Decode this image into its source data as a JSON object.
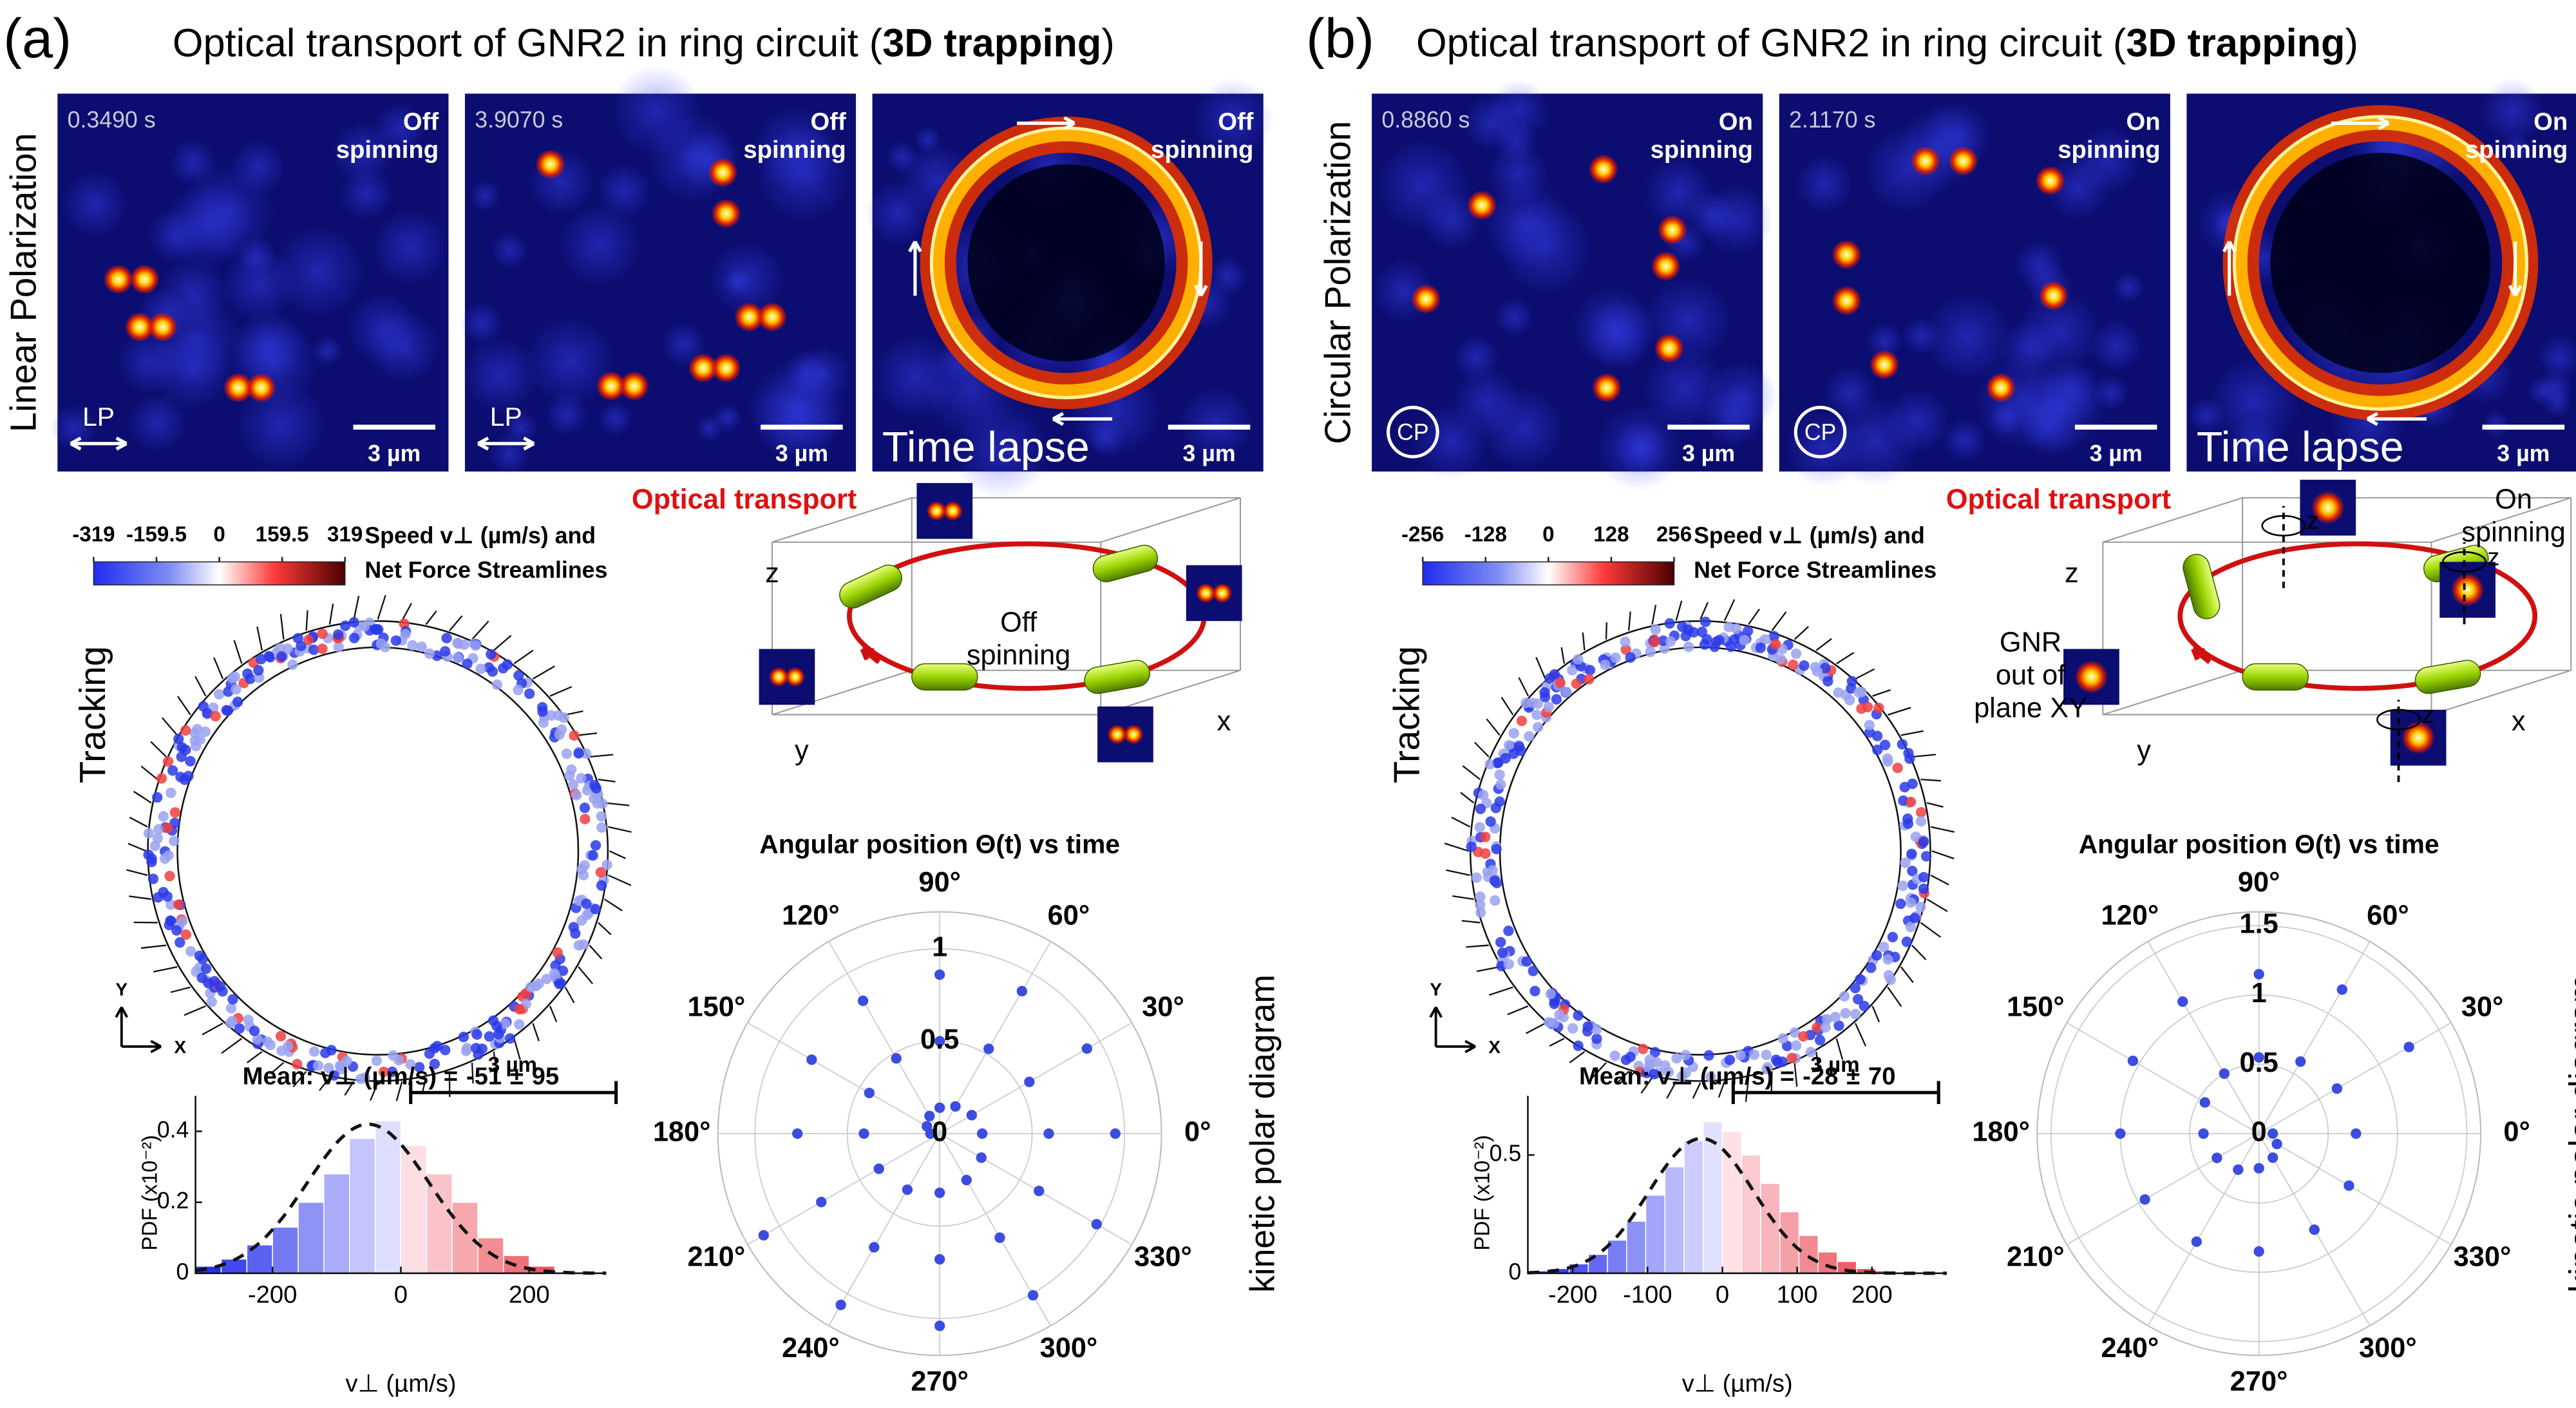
{
  "panels": [
    {
      "label": "(a)",
      "title": "Optical transport of GNR2 in ring circuit (",
      "title_bold": "3D trapping",
      "title_end": ")",
      "row_label": "Linear Polarization",
      "frames": [
        {
          "time": "0.3490 s",
          "state": [
            "Off",
            "spinning"
          ],
          "scale": "3 µm",
          "pol": "LP"
        },
        {
          "time": "3.9070 s",
          "state": [
            "Off",
            "spinning"
          ],
          "scale": "3 µm",
          "pol": "LP"
        },
        {
          "state": [
            "Off",
            "spinning"
          ],
          "scale": "3 µm",
          "caption": "Time lapse"
        }
      ],
      "transport": "Optical transport",
      "colorbar": {
        "lim": [
          -319,
          319
        ],
        "ticks": [
          -319,
          -159.5,
          0,
          159.5,
          319
        ],
        "label": [
          "Speed v⊥ (µm/s) and",
          "Net Force Streamlines"
        ]
      },
      "tracking": {
        "label": "Tracking",
        "y": "Y",
        "x": "X",
        "scale": "3 µm"
      },
      "diagram": {
        "axes": [
          "z",
          "y",
          "x"
        ],
        "notes": [
          [
            "Off",
            "spinning"
          ]
        ]
      },
      "histogram": {
        "mean_label": "Mean: v⊥ (µm/s) =",
        "mean": -51,
        "pm": "±",
        "sd": 95,
        "ylabel": "PDF (x10⁻²)",
        "xlabel": "v⊥ (µm/s)",
        "bins": [
          -320,
          -280,
          -240,
          -200,
          -160,
          -120,
          -80,
          -40,
          0,
          40,
          80,
          120,
          160,
          200,
          240
        ],
        "values": [
          0.02,
          0.04,
          0.08,
          0.13,
          0.2,
          0.28,
          0.38,
          0.43,
          0.36,
          0.28,
          0.2,
          0.1,
          0.05,
          0.02
        ],
        "xlim": [
          -320,
          320
        ],
        "xticks": [
          -200,
          0,
          200
        ],
        "ylim": [
          0,
          0.5
        ],
        "yticks": [
          0,
          0.2,
          0.4
        ]
      },
      "polar": {
        "title": "Angular position Θ(t) vs time",
        "side_label": "kinetic polar diagram",
        "angles": [
          {
            "value": 0,
            "label": "0°"
          },
          {
            "value": 30,
            "label": "30°"
          },
          {
            "value": 60,
            "label": "60°"
          },
          {
            "value": 90,
            "label": "90°"
          },
          {
            "value": 120,
            "label": "120°"
          },
          {
            "value": 150,
            "label": "150°"
          },
          {
            "value": 180,
            "label": "180°"
          },
          {
            "value": 210,
            "label": "210°"
          },
          {
            "value": 240,
            "label": "240°"
          },
          {
            "value": 270,
            "label": "270°"
          },
          {
            "value": 300,
            "label": "300°"
          },
          {
            "value": 330,
            "label": "330°"
          }
        ],
        "rlim": [
          0,
          1.2
        ],
        "rticks": [
          0,
          0.5,
          1
        ],
        "color": "#3b4ce0",
        "theta": [
          180,
          150,
          120,
          90,
          60,
          30,
          0,
          330,
          300,
          270,
          240,
          210,
          180,
          150,
          120,
          90,
          60,
          30,
          0,
          330,
          300,
          270,
          240,
          210,
          180,
          150,
          120,
          90,
          60,
          30,
          0,
          330,
          300,
          270,
          240,
          210
        ],
        "r": [
          0.05,
          0.08,
          0.11,
          0.14,
          0.17,
          0.2,
          0.23,
          0.26,
          0.29,
          0.32,
          0.35,
          0.38,
          0.41,
          0.44,
          0.47,
          0.5,
          0.53,
          0.56,
          0.59,
          0.62,
          0.65,
          0.68,
          0.71,
          0.74,
          0.77,
          0.8,
          0.83,
          0.86,
          0.89,
          0.92,
          0.95,
          0.98,
          1.01,
          1.04,
          1.07,
          1.1
        ]
      }
    },
    {
      "label": "(b)",
      "title": "Optical transport of GNR2 in ring circuit (",
      "title_bold": "3D trapping",
      "title_end": ")",
      "row_label": "Circular Polarization",
      "frames": [
        {
          "time": "0.8860 s",
          "state": [
            "On",
            "spinning"
          ],
          "scale": "3 µm",
          "pol": "CP"
        },
        {
          "time": "2.1170 s",
          "state": [
            "On",
            "spinning"
          ],
          "scale": "3 µm",
          "pol": "CP"
        },
        {
          "state": [
            "On",
            "spinning"
          ],
          "scale": "3 µm",
          "caption": "Time lapse"
        }
      ],
      "transport": "Optical transport",
      "colorbar": {
        "lim": [
          -256,
          256
        ],
        "ticks": [
          -256,
          -128,
          0,
          128,
          256
        ],
        "label": [
          "Speed v⊥ (µm/s) and",
          "Net Force Streamlines"
        ]
      },
      "tracking": {
        "label": "Tracking",
        "y": "Y",
        "x": "X",
        "scale": "3 µm"
      },
      "diagram": {
        "axes": [
          "z",
          "y",
          "x"
        ],
        "notes": [
          [
            "GNR",
            "out of",
            "plane XY"
          ],
          [
            "On",
            "spinning"
          ]
        ],
        "rotation_axis": "z"
      },
      "histogram": {
        "mean_label": "Mean: v⊥ (µm/s) =",
        "mean": -28,
        "pm": "±",
        "sd": 70,
        "ylabel": "PDF (x10⁻²)",
        "xlabel": "v⊥ (µm/s)",
        "bins": [
          -256,
          -230.4,
          -204.8,
          -179.2,
          -153.6,
          -128,
          -102.4,
          -76.8,
          -51.2,
          -25.6,
          0,
          25.6,
          51.2,
          76.8,
          102.4,
          128,
          153.6,
          179.2,
          204.8,
          230.4,
          256
        ],
        "values": [
          0.01,
          0.02,
          0.04,
          0.08,
          0.14,
          0.22,
          0.33,
          0.45,
          0.56,
          0.64,
          0.6,
          0.5,
          0.38,
          0.26,
          0.16,
          0.09,
          0.05,
          0.02,
          0.01,
          0.005
        ],
        "xlim": [
          -260,
          300
        ],
        "xticks": [
          -200,
          -100,
          0,
          100,
          200
        ],
        "ylim": [
          0,
          0.75
        ],
        "yticks": [
          0,
          0.5
        ]
      },
      "polar": {
        "title": "Angular position Θ(t) vs time",
        "side_label": "kinetic polar diagram",
        "angles": [
          {
            "value": 0,
            "label": "0°"
          },
          {
            "value": 30,
            "label": "30°"
          },
          {
            "value": 60,
            "label": "60°"
          },
          {
            "value": 90,
            "label": "90°"
          },
          {
            "value": 120,
            "label": "120°"
          },
          {
            "value": 150,
            "label": "150°"
          },
          {
            "value": 180,
            "label": "180°"
          },
          {
            "value": 210,
            "label": "210°"
          },
          {
            "value": 240,
            "label": "240°"
          },
          {
            "value": 270,
            "label": "270°"
          },
          {
            "value": 300,
            "label": "300°"
          },
          {
            "value": 330,
            "label": "330°"
          }
        ],
        "rlim": [
          0,
          1.6
        ],
        "rticks": [
          0,
          0.5,
          1,
          1.5
        ],
        "color": "#3b4ce0",
        "theta": [
          0,
          330,
          300,
          270,
          240,
          210,
          180,
          150,
          120,
          90,
          60,
          30,
          0,
          330,
          300,
          270,
          240,
          210,
          180,
          150,
          120,
          90,
          60,
          30
        ],
        "r": [
          0.1,
          0.15,
          0.2,
          0.25,
          0.3,
          0.35,
          0.4,
          0.45,
          0.5,
          0.55,
          0.6,
          0.65,
          0.7,
          0.75,
          0.8,
          0.85,
          0.9,
          0.95,
          1.0,
          1.05,
          1.1,
          1.15,
          1.2,
          1.25
        ]
      }
    }
  ]
}
